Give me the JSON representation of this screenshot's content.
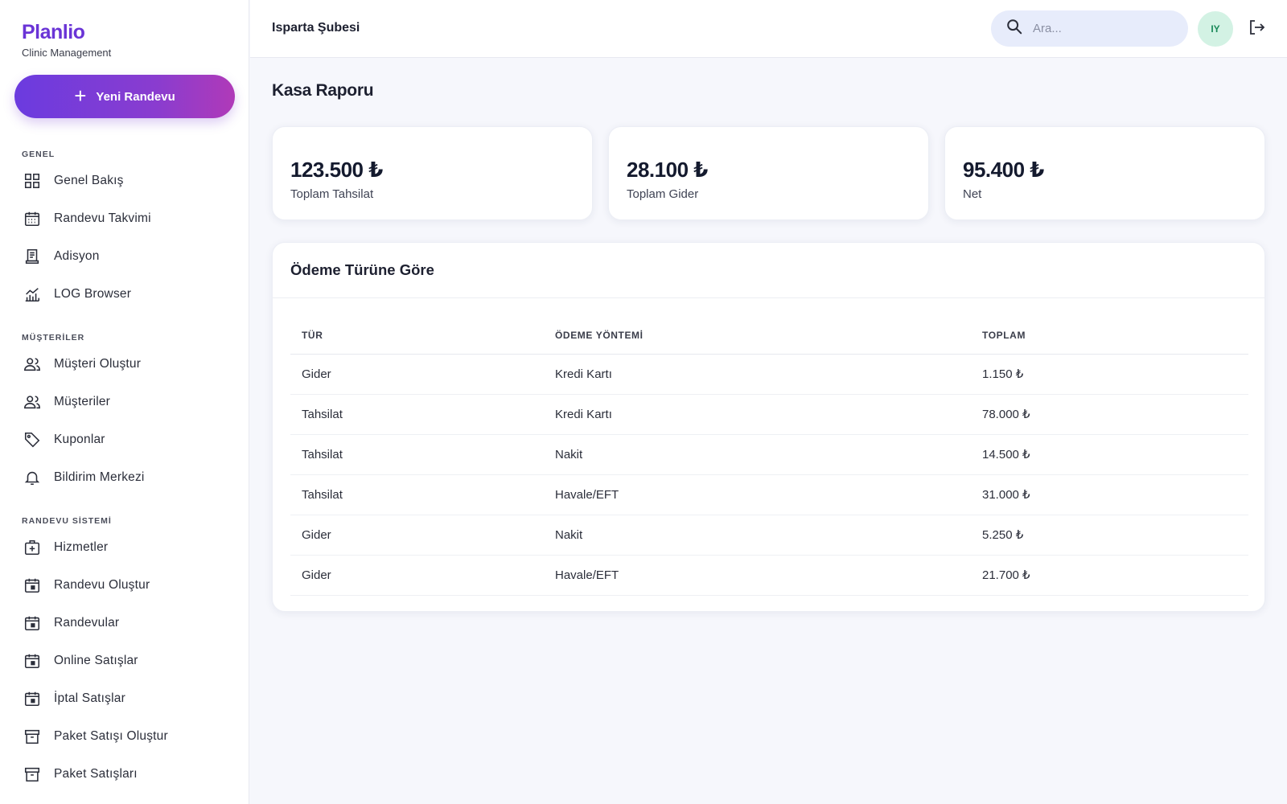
{
  "sidebar": {
    "brand_name": "Planlio",
    "brand_sub": "Clinic Management",
    "new_button": "Yeni Randevu",
    "sections": {
      "general": "GENEL",
      "customers": "MÜŞTERİLER",
      "appointment_system": "RANDEVU SİSTEMİ"
    },
    "items": [
      {
        "label": "Genel Bakış",
        "icon": "grid-icon"
      },
      {
        "label": "Randevu Takvimi",
        "icon": "calendar-grid-icon"
      },
      {
        "label": "Adisyon",
        "icon": "receipt-icon"
      },
      {
        "label": "LOG Browser",
        "icon": "chart-bars-icon"
      },
      {
        "label": "Müşteri Oluştur",
        "icon": "users-icon"
      },
      {
        "label": "Müşteriler",
        "icon": "users-icon"
      },
      {
        "label": "Kuponlar",
        "icon": "tag-icon"
      },
      {
        "label": "Bildirim Merkezi",
        "icon": "bell-icon"
      },
      {
        "label": "Hizmetler",
        "icon": "medical-case-icon"
      },
      {
        "label": "Randevu Oluştur",
        "icon": "calendar-day-icon"
      },
      {
        "label": "Randevular",
        "icon": "calendar-day-icon"
      },
      {
        "label": "Online Satışlar",
        "icon": "calendar-day-icon"
      },
      {
        "label": "İptal Satışlar",
        "icon": "calendar-day-icon"
      },
      {
        "label": "Paket Satışı Oluştur",
        "icon": "archive-box-icon"
      },
      {
        "label": "Paket Satışları",
        "icon": "archive-box-icon"
      }
    ]
  },
  "header": {
    "branch": "Isparta Şubesi",
    "search_placeholder": "Ara...",
    "avatar_initials": "IY"
  },
  "main": {
    "title": "Kasa Raporu",
    "stats": [
      {
        "amount": "123.500 ₺",
        "caption": "Toplam Tahsilat"
      },
      {
        "amount": "28.100 ₺",
        "caption": "Toplam Gider"
      },
      {
        "amount": "95.400 ₺",
        "caption": "Net"
      }
    ],
    "table": {
      "title": "Ödeme Türüne Göre",
      "columns": [
        "TÜR",
        "ÖDEME YÖNTEMİ",
        "TOPLAM"
      ],
      "rows": [
        [
          "Gider",
          "Kredi Kartı",
          "1.150 ₺"
        ],
        [
          "Tahsilat",
          "Kredi Kartı",
          "78.000 ₺"
        ],
        [
          "Tahsilat",
          "Nakit",
          "14.500 ₺"
        ],
        [
          "Tahsilat",
          "Havale/EFT",
          "31.000 ₺"
        ],
        [
          "Gider",
          "Nakit",
          "5.250 ₺"
        ],
        [
          "Gider",
          "Havale/EFT",
          "21.700 ₺"
        ]
      ]
    }
  },
  "colors": {
    "brand": "#6a34d6",
    "button_gradient_start": "#6b3bdf",
    "button_gradient_end": "#b03ab8",
    "avatar_bg": "#d3f2e4",
    "avatar_text": "#1b8a5a"
  }
}
